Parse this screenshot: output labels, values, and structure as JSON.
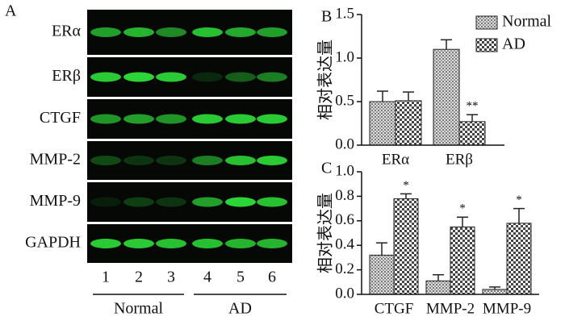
{
  "blot": {
    "panel": "A",
    "rows": [
      "ERα",
      "ERβ",
      "CTGF",
      "MMP-2",
      "MMP-9",
      "GAPDH"
    ],
    "lanes": [
      "1",
      "2",
      "3",
      "4",
      "5",
      "6"
    ],
    "groups": [
      "Normal",
      "AD"
    ]
  },
  "chart_data": [
    {
      "type": "bar",
      "panel": "B",
      "ylabel": "相对表达量",
      "categories": [
        "ERα",
        "ERβ"
      ],
      "series": [
        {
          "name": "Normal",
          "values": [
            0.5,
            1.1
          ],
          "errors": [
            0.12,
            0.11
          ]
        },
        {
          "name": "AD",
          "values": [
            0.51,
            0.27
          ],
          "errors": [
            0.1,
            0.08
          ],
          "significance": [
            null,
            "**"
          ]
        }
      ],
      "ylim": [
        0,
        1.5
      ],
      "yticks": [
        {
          "value": 0,
          "label": "0.0"
        },
        {
          "value": 0.5,
          "label": "0.5"
        },
        {
          "value": 1,
          "label": "1.0"
        },
        {
          "value": 1.5,
          "label": "1.5"
        }
      ]
    },
    {
      "type": "bar",
      "panel": "C",
      "ylabel": "相对表达量",
      "categories": [
        "CTGF",
        "MMP-2",
        "MMP-9"
      ],
      "series": [
        {
          "name": "Normal",
          "values": [
            0.32,
            0.11,
            0.04
          ],
          "errors": [
            0.1,
            0.05,
            0.02
          ]
        },
        {
          "name": "AD",
          "values": [
            0.78,
            0.55,
            0.58
          ],
          "errors": [
            0.04,
            0.08,
            0.12
          ],
          "significance": [
            "*",
            "*",
            "*"
          ]
        }
      ],
      "ylim": [
        0,
        1
      ],
      "yticks": [
        {
          "value": 0,
          "label": "0.0"
        },
        {
          "value": 0.2,
          "label": "0.2"
        },
        {
          "value": 0.4,
          "label": "0.4"
        },
        {
          "value": 0.6,
          "label": "0.6"
        },
        {
          "value": 0.8,
          "label": "0.8"
        },
        {
          "value": 1,
          "label": "1.0"
        }
      ]
    }
  ]
}
